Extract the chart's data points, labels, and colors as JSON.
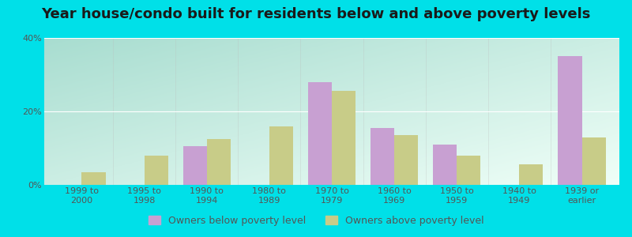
{
  "title": "Year house/condo built for residents below and above poverty levels",
  "categories": [
    "1999 to\n2000",
    "1995 to\n1998",
    "1990 to\n1994",
    "1980 to\n1989",
    "1970 to\n1979",
    "1960 to\n1969",
    "1950 to\n1959",
    "1940 to\n1949",
    "1939 or\nearlier"
  ],
  "below_poverty": [
    0.0,
    0.0,
    10.5,
    0.0,
    28.0,
    15.5,
    11.0,
    0.0,
    35.0
  ],
  "above_poverty": [
    3.5,
    8.0,
    12.5,
    16.0,
    25.5,
    13.5,
    8.0,
    5.5,
    13.0
  ],
  "below_color": "#c8a0d2",
  "above_color": "#c8cc88",
  "ylim": [
    0,
    40
  ],
  "yticks": [
    0,
    20,
    40
  ],
  "ytick_labels": [
    "0%",
    "20%",
    "40%"
  ],
  "bg_color_topleft": "#a8ddd0",
  "bg_color_bottomright": "#f0fff8",
  "outer_color": "#00e0e8",
  "bar_width": 0.38,
  "legend_below_label": "Owners below poverty level",
  "legend_above_label": "Owners above poverty level",
  "title_fontsize": 13,
  "tick_fontsize": 8,
  "legend_fontsize": 9
}
